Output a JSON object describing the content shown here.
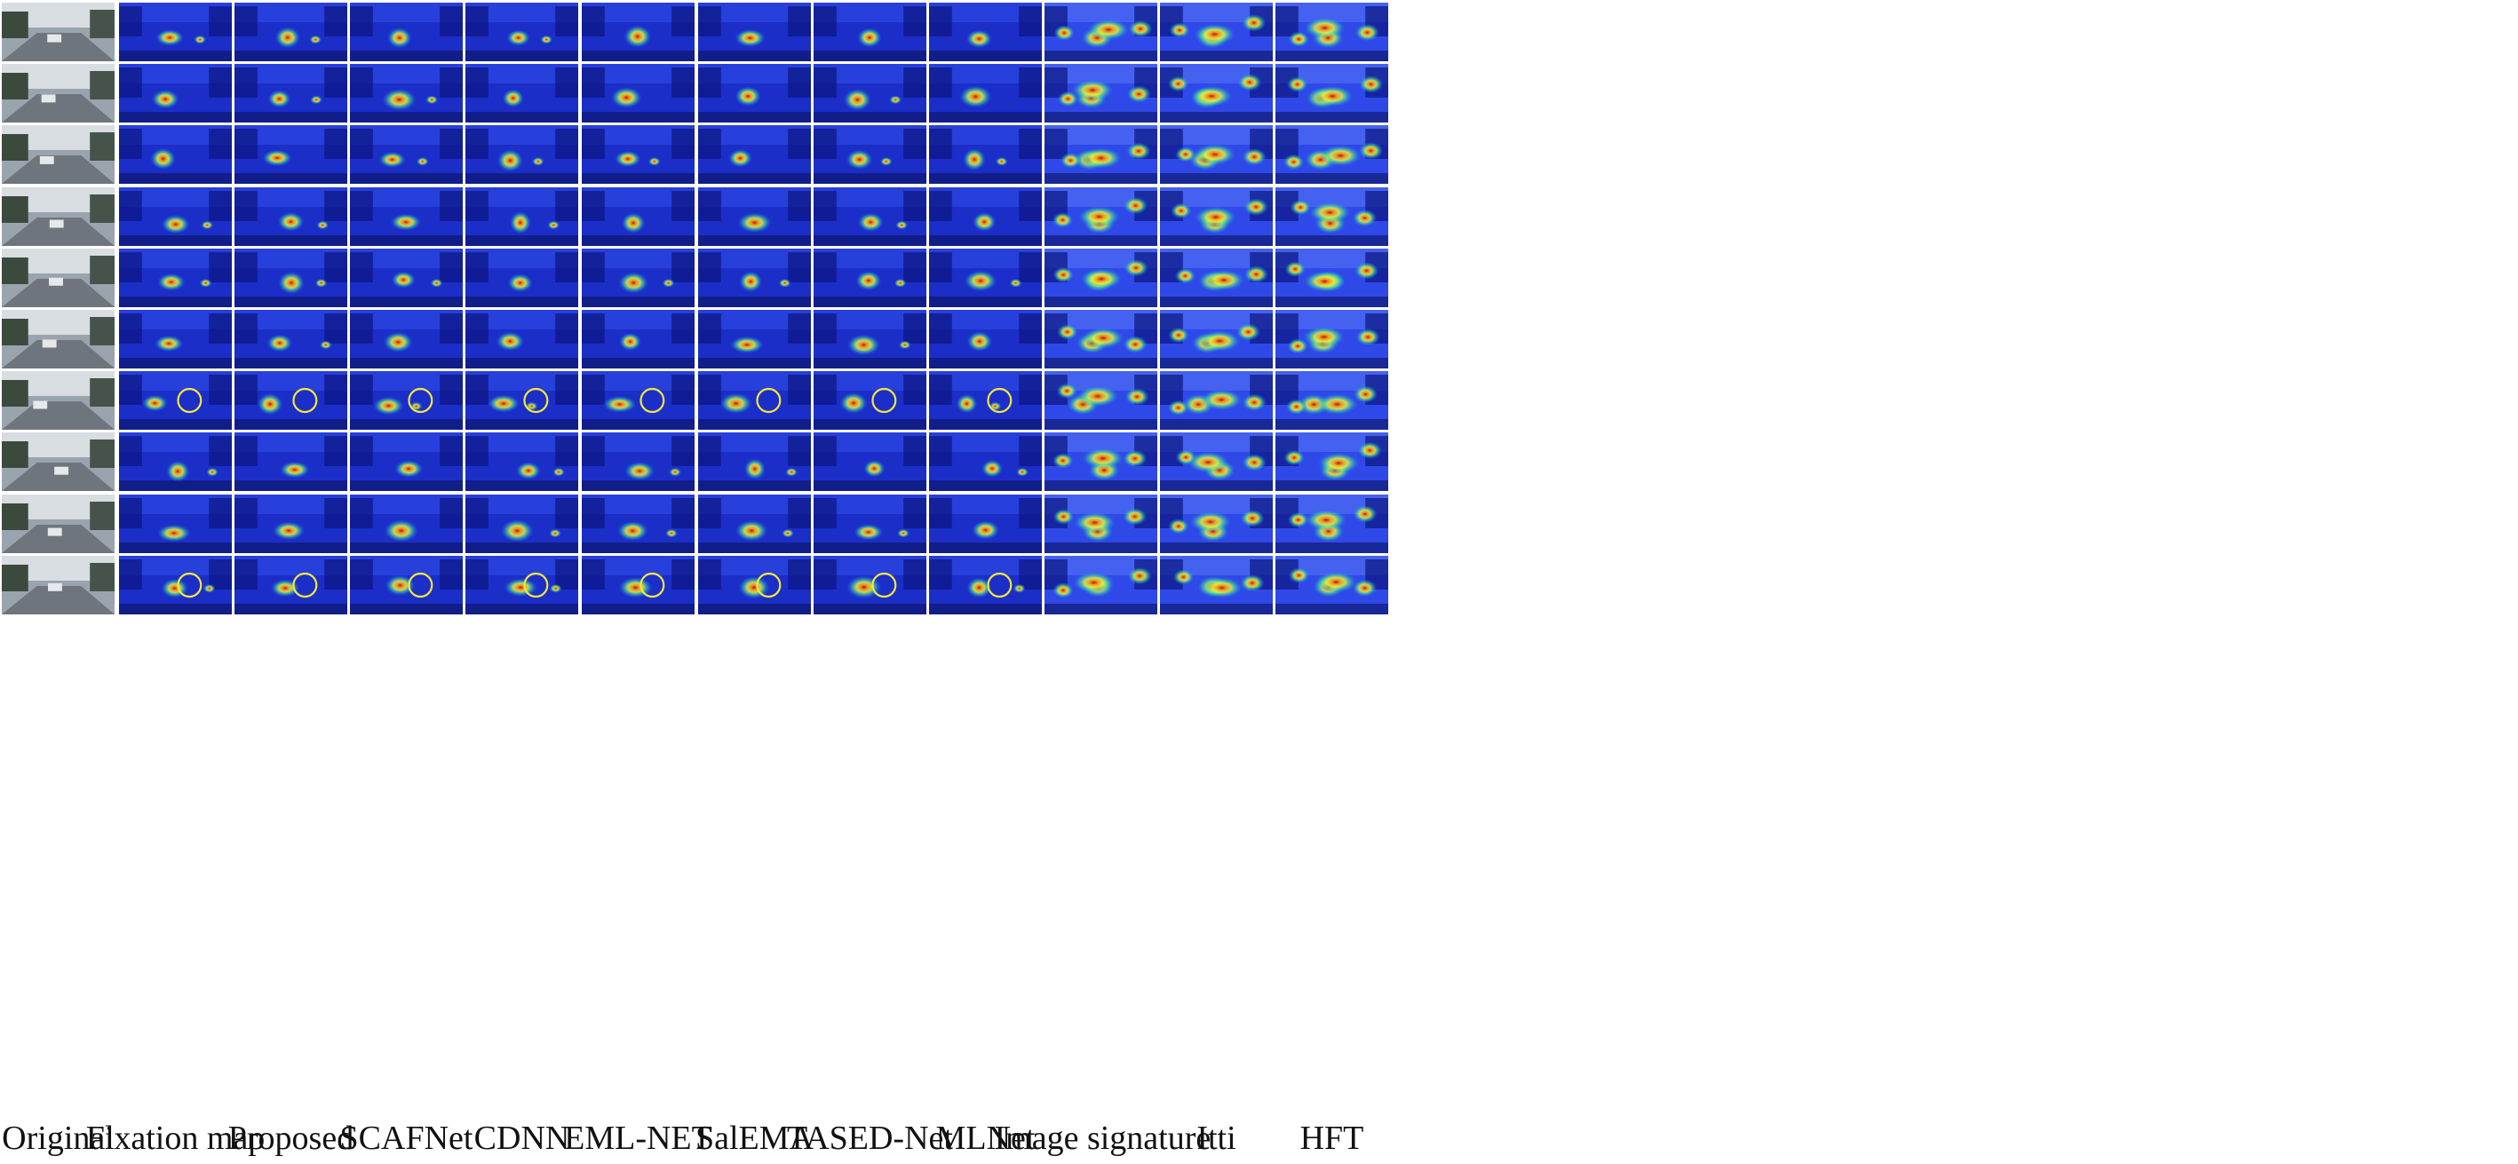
{
  "figure": {
    "columns": [
      {
        "label": "Original",
        "kind": "photo",
        "heat": 0
      },
      {
        "label": "Fixation map",
        "kind": "dark",
        "heat": 1
      },
      {
        "label": "Proposed",
        "kind": "dark",
        "heat": 1
      },
      {
        "label": "SCAFNet",
        "kind": "dark",
        "heat": 1
      },
      {
        "label": "CDNN",
        "kind": "dark",
        "heat": 1
      },
      {
        "label": "EML-NET",
        "kind": "dark",
        "heat": 1
      },
      {
        "label": "SalEMA",
        "kind": "dark",
        "heat": 1
      },
      {
        "label": "TASED-Net",
        "kind": "dark",
        "heat": 1
      },
      {
        "label": "MLNet",
        "kind": "dark",
        "heat": 1
      },
      {
        "label": "Image signature",
        "kind": "light",
        "heat": 2
      },
      {
        "label": "Itti",
        "kind": "light",
        "heat": 2
      },
      {
        "label": "HFT",
        "kind": "light",
        "heat": 2
      }
    ],
    "rows": 10,
    "circled_rows": [
      6,
      9
    ],
    "circle_color": "#f2e83a"
  }
}
